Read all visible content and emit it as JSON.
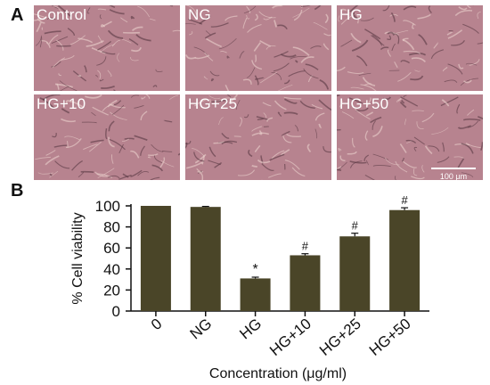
{
  "figure": {
    "panel_a_letter": "A",
    "panel_b_letter": "B"
  },
  "micrographs": {
    "panels": [
      {
        "label": "Control"
      },
      {
        "label": "NG"
      },
      {
        "label": "HG"
      },
      {
        "label": "HG+10"
      },
      {
        "label": "HG+25"
      },
      {
        "label": "HG+50"
      }
    ],
    "scale_bar_label": "100 μm"
  },
  "chart_data": {
    "type": "bar",
    "categories": [
      "0",
      "NG",
      "HG",
      "HG+10",
      "HG+25",
      "HG+50"
    ],
    "values": [
      100,
      99,
      31,
      53,
      71,
      96
    ],
    "errors": [
      0,
      0.5,
      1.2,
      1.5,
      3,
      2.2
    ],
    "significance": [
      "",
      "",
      "*",
      "#",
      "#",
      "#"
    ],
    "xlabel": "Concentration (μg/ml)",
    "ylabel": "% Cell viability",
    "ylim": [
      0,
      100
    ],
    "yticks": [
      0,
      20,
      40,
      60,
      80,
      100
    ],
    "bar_color": "#4a4528",
    "grid": false
  }
}
